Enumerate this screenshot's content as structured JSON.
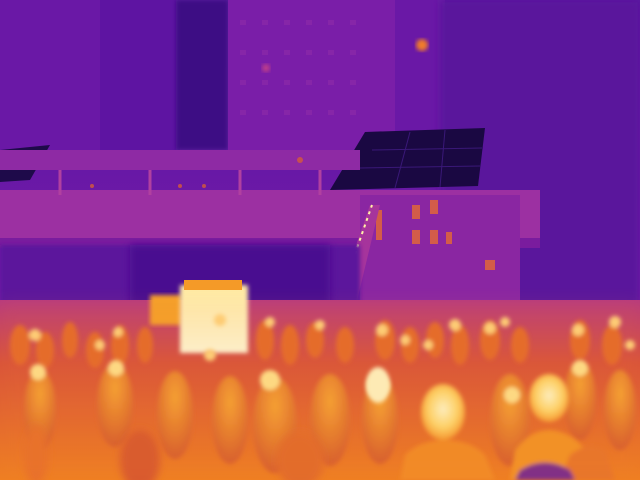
{
  "image": {
    "kind": "thermal-camera-photo",
    "palette": "inferno",
    "subject": "crowd-on-plaza-under-elevated-walkway-and-buildings",
    "colors": {
      "cold": "#3a0c7a",
      "cool": "#6a1aa6",
      "mid": "#b02a9a",
      "warm": "#e2552f",
      "hot": "#f59b1f",
      "hottest": "#fff0a8"
    }
  }
}
